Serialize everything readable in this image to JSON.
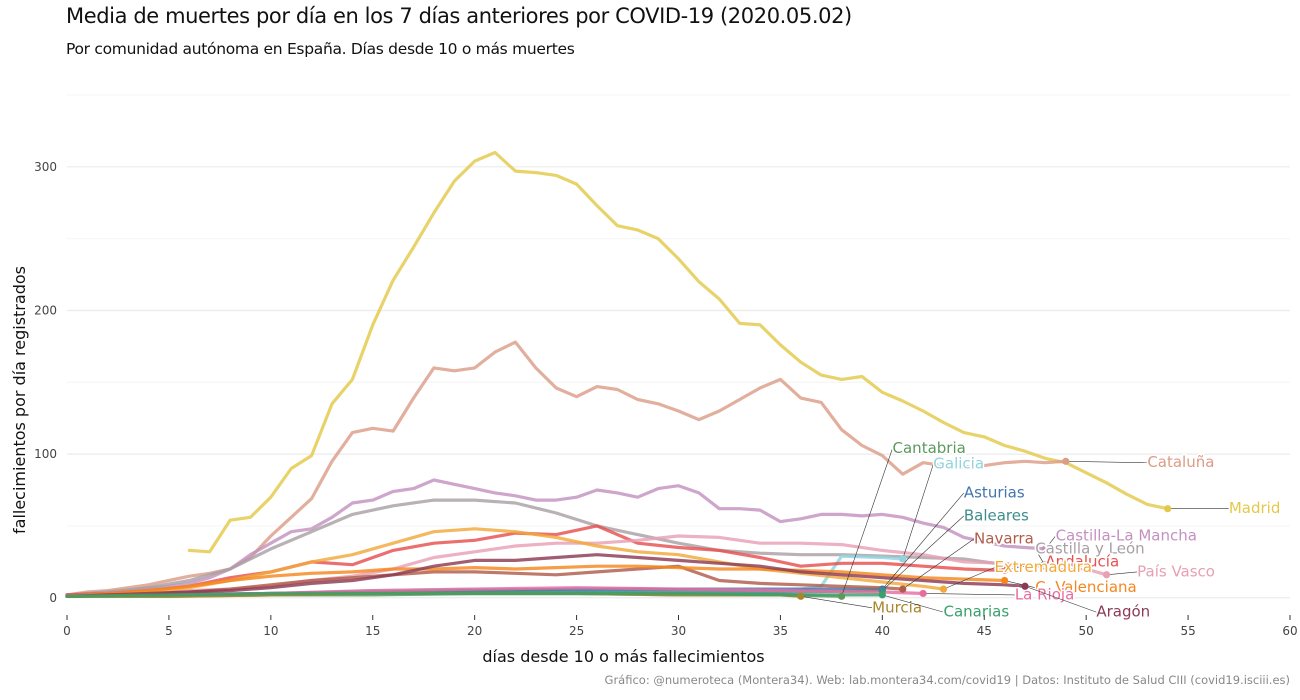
{
  "title": "Media de muertes por día en los 7 días anteriores por COVID-19 (2020.05.02)",
  "subtitle": "Por comunidad autónoma en España. Días desde 10 o más muertes",
  "caption": "Gráfico: @numeroteca (Montera34). Web: lab.montera34.com/covid19 | Datos: Instituto de Salud CIII (covid19.isciii.es)",
  "chart_data": {
    "type": "line",
    "xlabel": "días desde 10 o más fallecimientos",
    "ylabel": "fallecimientos por día registrados",
    "xlim": [
      0,
      60
    ],
    "ylim": [
      -12,
      350
    ],
    "x_ticks": [
      0,
      5,
      10,
      15,
      20,
      25,
      30,
      35,
      40,
      45,
      50,
      55,
      60
    ],
    "y_ticks": [
      0,
      100,
      200,
      300
    ],
    "grid": true,
    "legend": "direct-labels",
    "series": [
      {
        "name": "Madrid",
        "color": "#e3c94a",
        "label_pos": [
          57,
          62
        ],
        "x": [
          6,
          7,
          8,
          9,
          10,
          11,
          12,
          13,
          14,
          15,
          16,
          17,
          18,
          19,
          20,
          21,
          22,
          23,
          24,
          25,
          26,
          27,
          28,
          29,
          30,
          31,
          32,
          33,
          34,
          35,
          36,
          37,
          38,
          39,
          40,
          41,
          42,
          43,
          44,
          45,
          46,
          47,
          48,
          49,
          50,
          51,
          52,
          53,
          54
        ],
        "y": [
          33,
          32,
          54,
          56,
          70,
          90,
          99,
          135,
          152,
          190,
          221,
          244,
          268,
          290,
          304,
          310,
          297,
          296,
          294,
          288,
          273,
          259,
          256,
          250,
          236,
          220,
          208,
          191,
          190,
          176,
          164,
          155,
          152,
          154,
          143,
          137,
          130,
          122,
          115,
          112,
          106,
          102,
          97,
          94,
          87,
          80,
          72,
          65,
          62
        ]
      },
      {
        "name": "Cataluña",
        "color": "#dc9c87",
        "label_pos": [
          53,
          94
        ],
        "x": [
          0,
          1,
          2,
          3,
          4,
          5,
          6,
          7,
          8,
          9,
          10,
          11,
          12,
          13,
          14,
          15,
          16,
          17,
          18,
          19,
          20,
          21,
          22,
          23,
          24,
          25,
          26,
          27,
          28,
          29,
          30,
          31,
          32,
          33,
          34,
          35,
          36,
          37,
          38,
          39,
          40,
          41,
          42,
          43,
          44,
          45,
          46,
          47,
          48,
          49
        ],
        "y": [
          2,
          4,
          5,
          7,
          9,
          12,
          15,
          17,
          20,
          28,
          43,
          56,
          69,
          95,
          115,
          118,
          116,
          139,
          160,
          158,
          160,
          171,
          178,
          160,
          146,
          140,
          147,
          145,
          138,
          135,
          130,
          124,
          130,
          138,
          146,
          152,
          139,
          136,
          117,
          106,
          99,
          86,
          94,
          92,
          91,
          92,
          94,
          95,
          94,
          95
        ]
      },
      {
        "name": "Castilla-La Mancha",
        "color": "#c391c0",
        "label_pos": [
          48.5,
          43
        ],
        "x": [
          0,
          1,
          2,
          3,
          4,
          5,
          6,
          7,
          8,
          9,
          10,
          11,
          12,
          13,
          14,
          15,
          16,
          17,
          18,
          19,
          20,
          21,
          22,
          23,
          24,
          25,
          26,
          27,
          28,
          29,
          30,
          31,
          32,
          33,
          34,
          35,
          36,
          37,
          38,
          39,
          40,
          41,
          42,
          43,
          44,
          45,
          46,
          47,
          48
        ],
        "y": [
          2,
          3,
          4,
          5,
          7,
          8,
          10,
          14,
          20,
          30,
          38,
          46,
          48,
          56,
          66,
          68,
          74,
          76,
          82,
          79,
          76,
          73,
          71,
          68,
          68,
          70,
          75,
          73,
          70,
          76,
          78,
          73,
          62,
          62,
          61,
          53,
          55,
          58,
          58,
          57,
          58,
          56,
          52,
          49,
          42,
          39,
          36,
          35,
          34
        ]
      },
      {
        "name": "Castilla y León",
        "color": "#a9a0a5",
        "label_pos": [
          47.5,
          34
        ],
        "x": [
          0,
          2,
          4,
          6,
          8,
          10,
          12,
          14,
          16,
          18,
          20,
          22,
          24,
          26,
          28,
          30,
          32,
          34,
          36,
          38,
          40,
          42,
          44,
          46,
          48
        ],
        "y": [
          2,
          4,
          7,
          12,
          20,
          34,
          46,
          58,
          64,
          68,
          68,
          66,
          59,
          50,
          44,
          38,
          33,
          31,
          30,
          30,
          29,
          28,
          27,
          23,
          22
        ]
      },
      {
        "name": "Galicia",
        "color": "#8fd4e0",
        "label_pos": [
          42.5,
          93
        ],
        "x": [
          0,
          5,
          10,
          15,
          20,
          25,
          30,
          35,
          37,
          38,
          40,
          41
        ],
        "y": [
          1,
          2,
          3,
          5,
          6,
          5,
          6,
          4,
          8,
          29,
          28,
          27
        ]
      },
      {
        "name": "Andalucía",
        "color": "#e84f4f",
        "label_pos": [
          48,
          25
        ],
        "x": [
          0,
          2,
          4,
          6,
          8,
          10,
          12,
          14,
          16,
          18,
          20,
          22,
          24,
          26,
          28,
          30,
          32,
          34,
          36,
          38,
          40,
          42,
          44,
          46
        ],
        "y": [
          2,
          3,
          5,
          8,
          14,
          18,
          25,
          23,
          33,
          38,
          40,
          45,
          44,
          50,
          38,
          35,
          33,
          28,
          22,
          24,
          24,
          22,
          20,
          19
        ]
      },
      {
        "name": "País Vasco",
        "color": "#e8a0b4",
        "label_pos": [
          52.5,
          18
        ],
        "x": [
          0,
          2,
          4,
          6,
          8,
          10,
          12,
          14,
          16,
          18,
          20,
          22,
          24,
          26,
          28,
          30,
          32,
          34,
          36,
          38,
          40,
          42,
          44,
          46,
          48,
          50,
          51
        ],
        "y": [
          1,
          2,
          3,
          5,
          6,
          8,
          12,
          15,
          20,
          28,
          32,
          36,
          38,
          38,
          40,
          43,
          42,
          38,
          38,
          37,
          33,
          30,
          25,
          24,
          22,
          20,
          16
        ]
      },
      {
        "name": "Asturias",
        "color": "#4474b0",
        "label_pos": [
          44,
          73
        ],
        "x": [
          0,
          5,
          10,
          15,
          20,
          25,
          30,
          35,
          40
        ],
        "y": [
          1,
          2,
          3,
          4,
          5,
          6,
          6,
          6,
          6
        ]
      },
      {
        "name": "Baleares",
        "color": "#3f8c8c",
        "label_pos": [
          44,
          57
        ],
        "x": [
          0,
          5,
          10,
          15,
          20,
          25,
          30,
          35,
          40
        ],
        "y": [
          1,
          2,
          3,
          4,
          5,
          4,
          4,
          4,
          5
        ]
      },
      {
        "name": "Navarra",
        "color": "#b15c4a",
        "label_pos": [
          44.5,
          41
        ],
        "x": [
          0,
          2,
          4,
          6,
          8,
          10,
          12,
          14,
          16,
          18,
          20,
          22,
          24,
          26,
          28,
          30,
          32,
          34,
          36,
          38,
          40,
          41
        ],
        "y": [
          1,
          2,
          3,
          4,
          6,
          9,
          12,
          14,
          16,
          18,
          18,
          17,
          16,
          18,
          20,
          22,
          12,
          10,
          9,
          8,
          7,
          6
        ]
      },
      {
        "name": "Extremadura",
        "color": "#f2a83a",
        "label_pos": [
          45.5,
          21
        ],
        "x": [
          0,
          2,
          4,
          6,
          8,
          10,
          12,
          14,
          16,
          18,
          20,
          22,
          24,
          26,
          28,
          30,
          32,
          34,
          36,
          38,
          40,
          42,
          43
        ],
        "y": [
          1,
          2,
          4,
          7,
          12,
          18,
          25,
          30,
          38,
          46,
          48,
          46,
          42,
          36,
          32,
          30,
          25,
          20,
          17,
          14,
          11,
          8,
          6
        ]
      },
      {
        "name": "C. Valenciana",
        "color": "#f5861f",
        "label_pos": [
          47.5,
          7
        ],
        "x": [
          0,
          2,
          4,
          6,
          8,
          10,
          12,
          14,
          16,
          18,
          20,
          22,
          24,
          26,
          28,
          30,
          32,
          34,
          36,
          38,
          40,
          42,
          44,
          46
        ],
        "y": [
          1,
          3,
          5,
          8,
          12,
          15,
          17,
          18,
          20,
          20,
          21,
          20,
          21,
          22,
          22,
          21,
          20,
          20,
          19,
          18,
          16,
          14,
          13,
          12
        ]
      },
      {
        "name": "La Rioja",
        "color": "#e86ca0",
        "label_pos": [
          46.5,
          2
        ],
        "x": [
          0,
          5,
          10,
          15,
          20,
          25,
          30,
          35,
          40,
          42
        ],
        "y": [
          1,
          2,
          3,
          5,
          6,
          7,
          6,
          5,
          4,
          3
        ]
      },
      {
        "name": "Aragón",
        "color": "#8c3a54",
        "label_pos": [
          50.5,
          -10
        ],
        "x": [
          0,
          2,
          4,
          6,
          8,
          10,
          12,
          14,
          16,
          18,
          20,
          22,
          24,
          26,
          28,
          30,
          32,
          34,
          36,
          38,
          40,
          42,
          44,
          46,
          47
        ],
        "y": [
          1,
          2,
          3,
          4,
          5,
          7,
          10,
          12,
          16,
          22,
          26,
          26,
          28,
          30,
          28,
          26,
          24,
          22,
          18,
          16,
          14,
          12,
          10,
          9,
          8
        ]
      },
      {
        "name": "Cantabria",
        "color": "#5b9a5b",
        "label_pos": [
          40.5,
          104
        ],
        "x": [
          0,
          5,
          10,
          15,
          20,
          25,
          30,
          35,
          38
        ],
        "y": [
          1,
          1,
          2,
          2,
          3,
          3,
          2,
          2,
          1
        ]
      },
      {
        "name": "Murcia",
        "color": "#a8862a",
        "label_pos": [
          39.5,
          -7
        ],
        "x": [
          0,
          5,
          10,
          15,
          20,
          25,
          30,
          35,
          36
        ],
        "y": [
          1,
          1,
          2,
          3,
          3,
          3,
          2,
          2,
          1
        ]
      },
      {
        "name": "Canarias",
        "color": "#3aa06c",
        "label_pos": [
          43,
          -10
        ],
        "x": [
          0,
          5,
          10,
          15,
          20,
          25,
          30,
          35,
          40
        ],
        "y": [
          1,
          2,
          3,
          3,
          3,
          3,
          3,
          2,
          2
        ]
      }
    ]
  }
}
